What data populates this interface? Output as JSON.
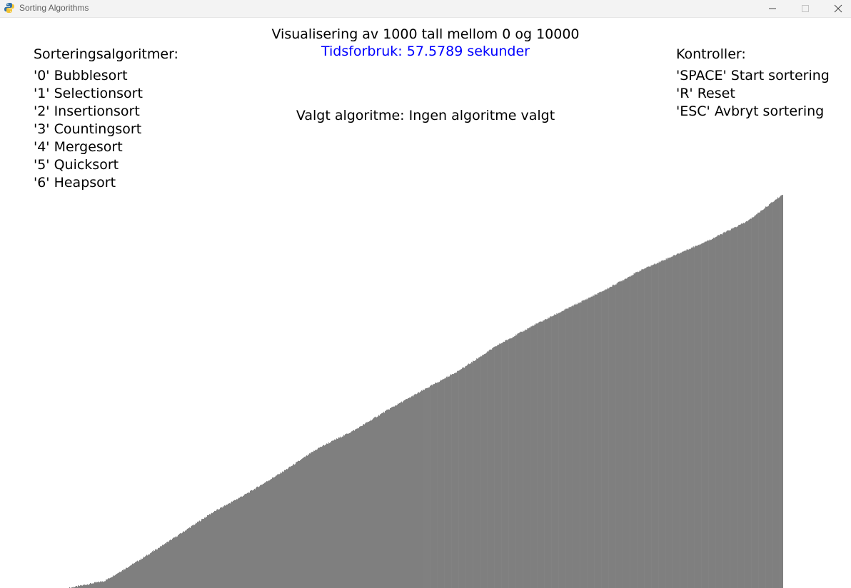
{
  "window": {
    "title": "Sorting Algorithms",
    "icon": "python-snake-icon"
  },
  "header": {
    "heading": "Visualisering av 1000 tall mellom 0 og 10000",
    "timer": "Tidsforbruk: 57.5789 sekunder",
    "timer_color": "#0000ff",
    "selected": "Valgt algoritme: Ingen algoritme valgt"
  },
  "algorithms": {
    "title": "Sorteringsalgoritmer:",
    "items": [
      "'0' Bubblesort",
      "'1' Selectionsort",
      "'2' Insertionsort",
      "'3' Countingsort",
      "'4' Mergesort",
      "'5' Quicksort",
      "'6' Heapsort"
    ]
  },
  "controls": {
    "title": "Kontroller:",
    "items": [
      "'SPACE' Start sortering",
      "'R' Reset",
      "'ESC' Avbryt sortering"
    ]
  },
  "chart_data": {
    "type": "bar",
    "count": 1000,
    "value_range": [
      0,
      10000
    ],
    "sorted": "ascending",
    "bar_color": "#000000",
    "approx_curve": [
      [
        0,
        0
      ],
      [
        50,
        180
      ],
      [
        100,
        720
      ],
      [
        150,
        1300
      ],
      [
        200,
        1900
      ],
      [
        250,
        2400
      ],
      [
        300,
        2950
      ],
      [
        350,
        3550
      ],
      [
        400,
        4000
      ],
      [
        450,
        4550
      ],
      [
        500,
        5050
      ],
      [
        550,
        5550
      ],
      [
        600,
        6150
      ],
      [
        650,
        6650
      ],
      [
        700,
        7100
      ],
      [
        750,
        7550
      ],
      [
        800,
        8050
      ],
      [
        850,
        8450
      ],
      [
        900,
        8850
      ],
      [
        950,
        9300
      ],
      [
        999,
        9980
      ]
    ]
  }
}
